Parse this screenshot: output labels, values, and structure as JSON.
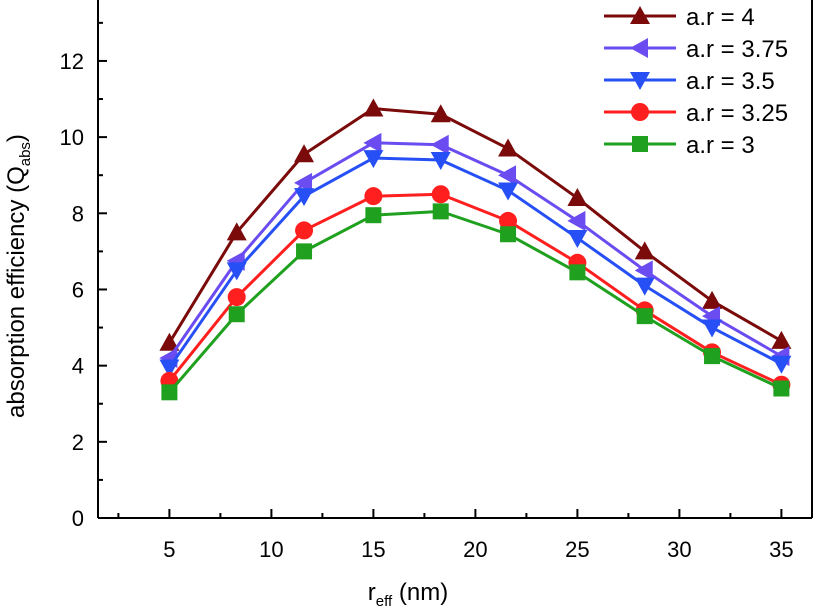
{
  "chart_data": {
    "type": "line",
    "title": "",
    "xlabel": {
      "main": "r",
      "sub": "eff",
      "unit": " (nm)"
    },
    "ylabel": {
      "main": "absorption efficiency (Q",
      "sub": "abs",
      "close": ")"
    },
    "xlim": [
      1.5,
      36.5
    ],
    "ylim": [
      0,
      13.6
    ],
    "xticks": [
      5,
      10,
      15,
      20,
      25,
      30,
      35
    ],
    "yticks": [
      0,
      2,
      4,
      6,
      8,
      10,
      12
    ],
    "x": [
      5,
      8.3,
      11.6,
      15,
      18.3,
      21.6,
      25,
      28.3,
      31.6,
      35
    ],
    "legend_position": "top-right",
    "series": [
      {
        "name": "a.r = 4",
        "color": "#7b0a0a",
        "marker": "triangle-up",
        "values": [
          4.6,
          7.5,
          9.55,
          10.75,
          10.6,
          9.7,
          8.4,
          7.0,
          5.7,
          4.65
        ]
      },
      {
        "name": "a.r = 3.75",
        "color": "#6a4cf0",
        "marker": "triangle-left",
        "values": [
          4.2,
          6.75,
          8.8,
          9.85,
          9.8,
          9.0,
          7.8,
          6.5,
          5.3,
          4.25
        ]
      },
      {
        "name": "a.r = 3.5",
        "color": "#2650f5",
        "marker": "triangle-down",
        "values": [
          3.95,
          6.5,
          8.45,
          9.45,
          9.4,
          8.6,
          7.35,
          6.1,
          5.0,
          4.05
        ]
      },
      {
        "name": "a.r = 3.25",
        "color": "#ff1f1f",
        "marker": "circle",
        "values": [
          3.6,
          5.8,
          7.55,
          8.45,
          8.5,
          7.8,
          6.7,
          5.45,
          4.35,
          3.5
        ]
      },
      {
        "name": "a.r = 3",
        "color": "#1fa01f",
        "marker": "square",
        "values": [
          3.3,
          5.35,
          7.0,
          7.95,
          8.05,
          7.45,
          6.45,
          5.3,
          4.25,
          3.4
        ]
      }
    ]
  }
}
